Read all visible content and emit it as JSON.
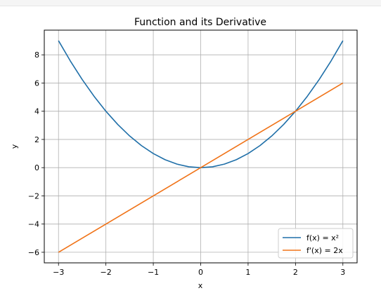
{
  "chart_data": {
    "type": "line",
    "title": "Function and its Derivative",
    "xlabel": "x",
    "ylabel": "y",
    "xlim": [
      -3.3,
      3.3
    ],
    "ylim": [
      -6.75,
      9.75
    ],
    "x_ticks": [
      -3,
      -2,
      -1,
      0,
      1,
      2,
      3
    ],
    "x_tick_labels": [
      "−3",
      "−2",
      "−1",
      "0",
      "1",
      "2",
      "3"
    ],
    "y_ticks": [
      -6,
      -4,
      -2,
      0,
      2,
      4,
      6,
      8
    ],
    "y_tick_labels": [
      "−6",
      "−4",
      "−2",
      "0",
      "2",
      "4",
      "6",
      "8"
    ],
    "grid": true,
    "legend_position": "lower-right",
    "series": [
      {
        "name": "f(x) = x²",
        "color": "#1f6fa8",
        "x": [
          -3,
          -2.75,
          -2.5,
          -2.25,
          -2,
          -1.75,
          -1.5,
          -1.25,
          -1,
          -0.75,
          -0.5,
          -0.25,
          0,
          0.25,
          0.5,
          0.75,
          1,
          1.25,
          1.5,
          1.75,
          2,
          2.25,
          2.5,
          2.75,
          3
        ],
        "y": [
          9,
          7.5625,
          6.25,
          5.0625,
          4,
          3.0625,
          2.25,
          1.5625,
          1,
          0.5625,
          0.25,
          0.0625,
          0,
          0.0625,
          0.25,
          0.5625,
          1,
          1.5625,
          2.25,
          3.0625,
          4,
          5.0625,
          6.25,
          7.5625,
          9
        ]
      },
      {
        "name": "f'(x) = 2x",
        "color": "#f07318",
        "x": [
          -3,
          3
        ],
        "y": [
          -6,
          6
        ]
      }
    ]
  }
}
